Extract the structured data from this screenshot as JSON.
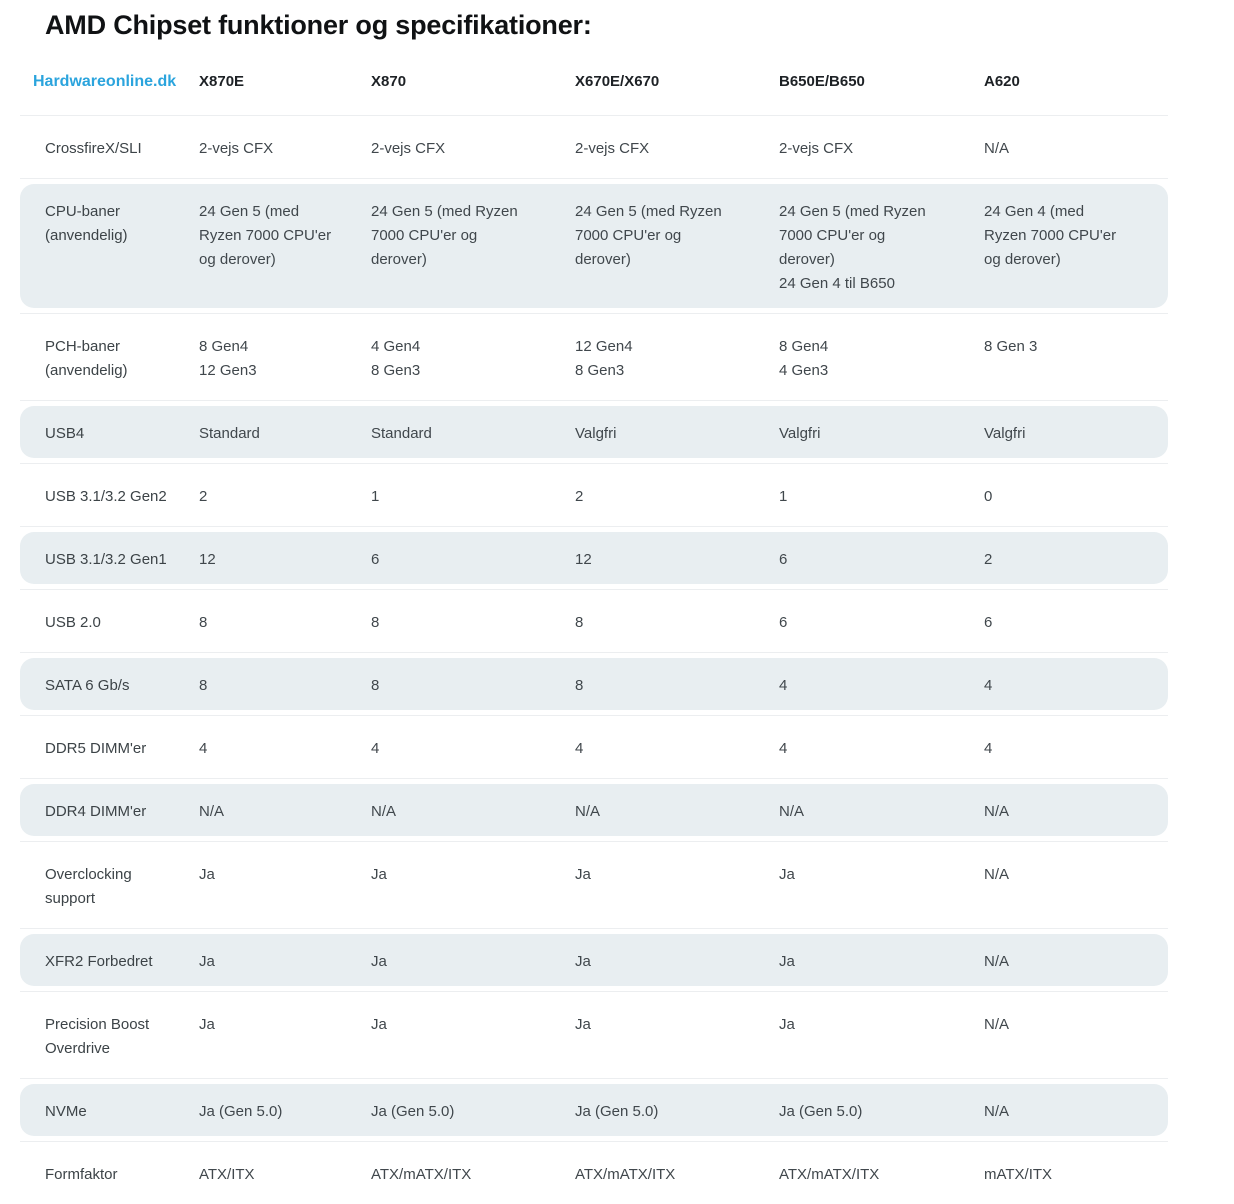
{
  "title": "AMD Chipset funktioner og specifikationer:",
  "header": {
    "brand": "Hardwareonline.dk",
    "columns": [
      "X870E",
      "X870",
      "X670E/X670",
      "B650E/B650",
      "A620"
    ]
  },
  "rows": [
    {
      "label": "CrossfireX/SLI",
      "shaded": false,
      "values": [
        "2-vejs CFX",
        "2-vejs CFX",
        "2-vejs CFX",
        "2-vejs CFX",
        "N/A"
      ]
    },
    {
      "label": "CPU-baner\n(anvendelig)",
      "shaded": true,
      "values": [
        "24 Gen 5 (med\nRyzen 7000 CPU'er\nog derover)",
        "24 Gen 5 (med Ryzen\n7000 CPU'er og\nderover)",
        "24 Gen 5 (med Ryzen\n7000 CPU'er og\nderover)",
        "24 Gen 5 (med Ryzen\n7000 CPU'er og\nderover)\n24 Gen 4 til B650",
        "24 Gen 4 (med\nRyzen 7000 CPU'er\nog derover)"
      ]
    },
    {
      "label": "PCH-baner\n(anvendelig)",
      "shaded": false,
      "values": [
        "8 Gen4\n12 Gen3",
        "4 Gen4\n8 Gen3",
        "12 Gen4\n8 Gen3",
        "8 Gen4\n4 Gen3",
        "8 Gen 3"
      ]
    },
    {
      "label": "USB4",
      "shaded": true,
      "values": [
        "Standard",
        "Standard",
        "Valgfri",
        "Valgfri",
        "Valgfri"
      ]
    },
    {
      "label": "USB 3.1/3.2 Gen2",
      "shaded": false,
      "values": [
        "2",
        "1",
        "2",
        "1",
        "0"
      ]
    },
    {
      "label": "USB 3.1/3.2 Gen1",
      "shaded": true,
      "values": [
        "12",
        "6",
        "12",
        "6",
        "2"
      ]
    },
    {
      "label": "USB 2.0",
      "shaded": false,
      "values": [
        "8",
        "8",
        "8",
        "6",
        "6"
      ]
    },
    {
      "label": "SATA 6 Gb/s",
      "shaded": true,
      "values": [
        "8",
        "8",
        "8",
        "4",
        "4"
      ]
    },
    {
      "label": "DDR5 DIMM'er",
      "shaded": false,
      "values": [
        "4",
        "4",
        "4",
        "4",
        "4"
      ]
    },
    {
      "label": "DDR4 DIMM'er",
      "shaded": true,
      "values": [
        "N/A",
        "N/A",
        "N/A",
        "N/A",
        "N/A"
      ]
    },
    {
      "label": "Overclocking\nsupport",
      "shaded": false,
      "values": [
        "Ja",
        "Ja",
        "Ja",
        "Ja",
        "N/A"
      ]
    },
    {
      "label": "XFR2 Forbedret",
      "shaded": true,
      "values": [
        "Ja",
        "Ja",
        "Ja",
        "Ja",
        "N/A"
      ]
    },
    {
      "label": "Precision Boost\nOverdrive",
      "shaded": false,
      "values": [
        "Ja",
        "Ja",
        "Ja",
        "Ja",
        "N/A"
      ]
    },
    {
      "label": "NVMe",
      "shaded": true,
      "values": [
        "Ja (Gen 5.0)",
        "Ja (Gen 5.0)",
        "Ja (Gen 5.0)",
        "Ja (Gen 5.0)",
        "N/A"
      ]
    },
    {
      "label": "Formfaktor",
      "shaded": false,
      "values": [
        "ATX/ITX",
        "ATX/mATX/ITX",
        "ATX/mATX/ITX",
        "ATX/mATX/ITX",
        "mATX/ITX"
      ]
    }
  ],
  "colors": {
    "brand_link": "#2ba4dd",
    "row_shade": "#e8eef1",
    "separator": "#eceef0",
    "heading_text": "#1d2125",
    "body_text": "#40474c"
  }
}
